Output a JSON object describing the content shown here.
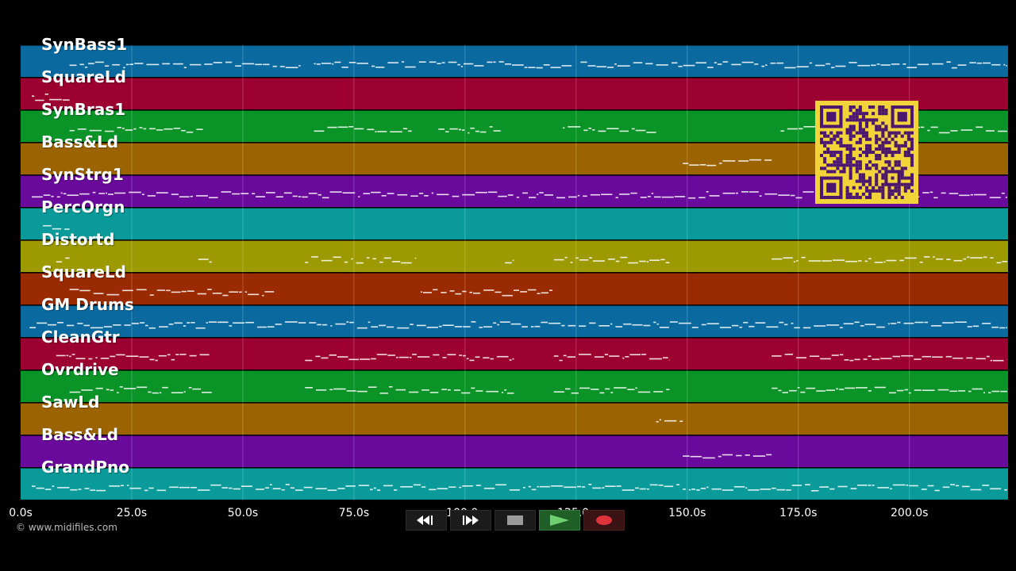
{
  "tracks": [
    {
      "name": "SynBass1",
      "color": "#0a6aa0"
    },
    {
      "name": "SquareLd",
      "color": "#9c0030"
    },
    {
      "name": "SynBras1",
      "color": "#0a9428"
    },
    {
      "name": "Bass&Ld",
      "color": "#9c6400"
    },
    {
      "name": "SynStrg1",
      "color": "#6a0a9c"
    },
    {
      "name": "PercOrgn",
      "color": "#0a9a9a"
    },
    {
      "name": "Distortd",
      "color": "#9c9a00"
    },
    {
      "name": "SquareLd",
      "color": "#9a2a00"
    },
    {
      "name": "GM Drums",
      "color": "#0a6aa0"
    },
    {
      "name": "CleanGtr",
      "color": "#9c0030"
    },
    {
      "name": "Ovrdrive",
      "color": "#0a9428"
    },
    {
      "name": "SawLd",
      "color": "#9c6400"
    },
    {
      "name": "Bass&Ld",
      "color": "#6a0a9c"
    },
    {
      "name": "GrandPno",
      "color": "#0a9a9a"
    }
  ],
  "timeline": {
    "ticks": [
      "0.0s",
      "25.0s",
      "50.0s",
      "75.0s",
      "100.0s",
      "125.0s",
      "150.0s",
      "175.0s",
      "200.0s"
    ],
    "tick_values": [
      0,
      25,
      50,
      75,
      100,
      125,
      150,
      175,
      200
    ],
    "max_seconds": 222.2
  },
  "copyright": "© www.midifiles.com",
  "transport": [
    {
      "name": "rewind-button",
      "icon": "rewind-icon"
    },
    {
      "name": "fast-forward-button",
      "icon": "fast-forward-icon"
    },
    {
      "name": "stop-button",
      "icon": "stop-icon"
    },
    {
      "name": "play-button",
      "icon": "play-icon"
    },
    {
      "name": "record-button",
      "icon": "record-icon"
    }
  ],
  "overlay": {
    "icon": "qr-code-icon",
    "color": "#f2d43a"
  },
  "notes": [
    {
      "track": 0,
      "segments": [
        [
          11,
          63
        ],
        [
          66,
          124
        ],
        [
          126,
          222
        ]
      ]
    },
    {
      "track": 1,
      "segments": [
        [
          2.5,
          11
        ]
      ]
    },
    {
      "track": 2,
      "segments": [
        [
          11,
          41
        ],
        [
          66,
          88
        ],
        [
          94,
          108
        ],
        [
          122,
          143
        ],
        [
          171,
          222
        ]
      ]
    },
    {
      "track": 3,
      "segments": [
        [
          149,
          169
        ]
      ]
    },
    {
      "track": 4,
      "segments": [
        [
          2.5,
          222
        ]
      ]
    },
    {
      "track": 5,
      "segments": [
        [
          5,
          11
        ]
      ]
    },
    {
      "track": 6,
      "segments": [
        [
          8,
          11
        ],
        [
          40,
          43
        ],
        [
          64,
          89
        ],
        [
          109,
          111
        ],
        [
          120,
          146
        ],
        [
          169,
          222
        ]
      ]
    },
    {
      "track": 7,
      "segments": [
        [
          11,
          57
        ],
        [
          90,
          120
        ]
      ]
    },
    {
      "track": 8,
      "segments": [
        [
          2,
          222
        ]
      ]
    },
    {
      "track": 9,
      "segments": [
        [
          8,
          43
        ],
        [
          64,
          111
        ],
        [
          120,
          146
        ],
        [
          169,
          222
        ]
      ]
    },
    {
      "track": 10,
      "segments": [
        [
          11,
          43
        ],
        [
          64,
          111
        ],
        [
          120,
          146
        ],
        [
          169,
          222
        ]
      ]
    },
    {
      "track": 11,
      "segments": [
        [
          143,
          149
        ]
      ]
    },
    {
      "track": 12,
      "segments": [
        [
          149,
          169
        ]
      ]
    },
    {
      "track": 13,
      "segments": [
        [
          2.5,
          222
        ]
      ]
    }
  ]
}
